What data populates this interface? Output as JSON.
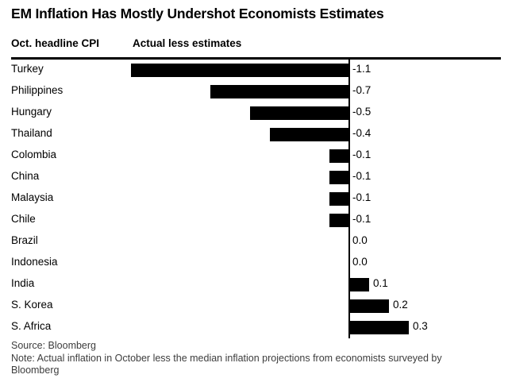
{
  "title": "EM Inflation Has Mostly Undershot Economists Estimates",
  "header": {
    "left_label": "Oct. headline CPI",
    "right_label": "Actual less estimates"
  },
  "chart_data": {
    "type": "bar",
    "orientation": "horizontal",
    "title": "EM Inflation Has Mostly Undershot Economists Estimates",
    "xlabel": "Actual less estimates",
    "ylabel": "Oct. headline CPI",
    "categories": [
      "Turkey",
      "Philippines",
      "Hungary",
      "Thailand",
      "Colombia",
      "China",
      "Malaysia",
      "Chile",
      "Brazil",
      "Indonesia",
      "India",
      "S. Korea",
      "S. Africa"
    ],
    "values": [
      -1.1,
      -0.7,
      -0.5,
      -0.4,
      -0.1,
      -0.1,
      -0.1,
      -0.1,
      0.0,
      0.0,
      0.1,
      0.2,
      0.3
    ],
    "value_labels": [
      "-1.1",
      "-0.7",
      "-0.5",
      "-0.4",
      "-0.1",
      "-0.1",
      "-0.1",
      "-0.1",
      "0.0",
      "0.0",
      "0.1",
      "0.2",
      "0.3"
    ],
    "xlim": [
      -1.7,
      0.75
    ],
    "grid": false,
    "zero_line": true,
    "bar_color": "#000000",
    "background_color": "#ffffff"
  },
  "footer": {
    "source": "Source: Bloomberg",
    "note": "Note: Actual inflation in October less the median inflation projections from economists surveyed by Bloomberg"
  }
}
